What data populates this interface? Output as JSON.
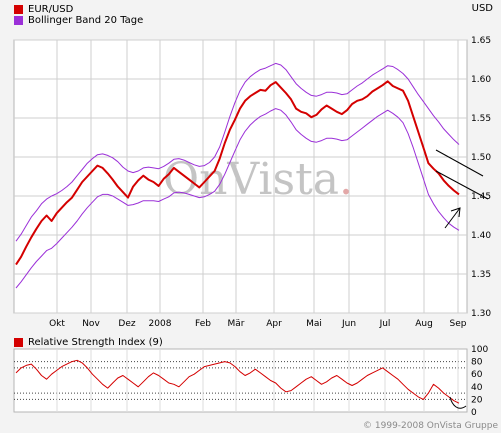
{
  "header": {
    "legend": [
      {
        "label": "EUR/USD",
        "color": "#d40000"
      },
      {
        "label": "Bollinger Band 20 Tage",
        "color": "#9b30d8"
      }
    ],
    "currency": "USD"
  },
  "rsi_header": {
    "label": "Relative Strength Index (9)",
    "color": "#d40000"
  },
  "watermark": {
    "main": "OnVista",
    "dot": "."
  },
  "footer": "© 1999-2008 OnVista Gruppe",
  "chart_data": [
    {
      "type": "line",
      "title": "EUR/USD",
      "x_labels": [
        "Okt",
        "Nov",
        "Dez",
        "2008",
        "Feb",
        "Mär",
        "Apr",
        "Mai",
        "Jun",
        "Jul",
        "Aug",
        "Sep"
      ],
      "ylim": [
        1.3,
        1.65
      ],
      "yticks": [
        1.3,
        1.35,
        1.4,
        1.45,
        1.5,
        1.55,
        1.6,
        1.65
      ],
      "grid": true,
      "series": [
        {
          "name": "EUR/USD",
          "color": "#d40000",
          "values": [
            1.362,
            1.372,
            1.385,
            1.397,
            1.408,
            1.418,
            1.425,
            1.418,
            1.428,
            1.435,
            1.442,
            1.448,
            1.458,
            1.468,
            1.475,
            1.482,
            1.489,
            1.486,
            1.479,
            1.471,
            1.462,
            1.455,
            1.448,
            1.462,
            1.47,
            1.476,
            1.471,
            1.468,
            1.463,
            1.472,
            1.478,
            1.486,
            1.481,
            1.476,
            1.471,
            1.466,
            1.461,
            1.468,
            1.475,
            1.482,
            1.498,
            1.518,
            1.535,
            1.548,
            1.562,
            1.572,
            1.578,
            1.582,
            1.586,
            1.585,
            1.592,
            1.596,
            1.589,
            1.582,
            1.574,
            1.562,
            1.558,
            1.556,
            1.551,
            1.554,
            1.561,
            1.566,
            1.562,
            1.558,
            1.555,
            1.56,
            1.568,
            1.572,
            1.574,
            1.578,
            1.584,
            1.588,
            1.592,
            1.597,
            1.591,
            1.588,
            1.585,
            1.572,
            1.552,
            1.532,
            1.512,
            1.492,
            1.485,
            1.479,
            1.47,
            1.463,
            1.457,
            1.452
          ]
        },
        {
          "name": "Bollinger upper",
          "color": "#9b30d8",
          "values": [
            1.392,
            1.401,
            1.412,
            1.423,
            1.431,
            1.44,
            1.446,
            1.45,
            1.453,
            1.457,
            1.462,
            1.468,
            1.476,
            1.484,
            1.492,
            1.498,
            1.503,
            1.504,
            1.502,
            1.499,
            1.494,
            1.487,
            1.482,
            1.48,
            1.482,
            1.486,
            1.487,
            1.486,
            1.485,
            1.488,
            1.492,
            1.497,
            1.498,
            1.496,
            1.493,
            1.49,
            1.488,
            1.489,
            1.493,
            1.5,
            1.513,
            1.532,
            1.552,
            1.57,
            1.585,
            1.596,
            1.603,
            1.608,
            1.612,
            1.614,
            1.617,
            1.62,
            1.618,
            1.612,
            1.603,
            1.594,
            1.588,
            1.583,
            1.579,
            1.578,
            1.58,
            1.583,
            1.583,
            1.582,
            1.58,
            1.581,
            1.586,
            1.591,
            1.595,
            1.6,
            1.605,
            1.609,
            1.613,
            1.617,
            1.616,
            1.612,
            1.607,
            1.6,
            1.59,
            1.58,
            1.571,
            1.562,
            1.553,
            1.545,
            1.536,
            1.529,
            1.522,
            1.516
          ]
        },
        {
          "name": "Bollinger lower",
          "color": "#9b30d8",
          "values": [
            1.332,
            1.34,
            1.349,
            1.358,
            1.366,
            1.373,
            1.38,
            1.383,
            1.389,
            1.396,
            1.403,
            1.41,
            1.418,
            1.427,
            1.435,
            1.442,
            1.449,
            1.452,
            1.452,
            1.45,
            1.446,
            1.442,
            1.438,
            1.439,
            1.441,
            1.444,
            1.444,
            1.444,
            1.443,
            1.446,
            1.449,
            1.454,
            1.455,
            1.454,
            1.452,
            1.45,
            1.448,
            1.449,
            1.452,
            1.456,
            1.465,
            1.478,
            1.493,
            1.508,
            1.522,
            1.533,
            1.541,
            1.547,
            1.552,
            1.555,
            1.559,
            1.562,
            1.56,
            1.554,
            1.545,
            1.535,
            1.529,
            1.524,
            1.52,
            1.519,
            1.521,
            1.524,
            1.524,
            1.523,
            1.521,
            1.522,
            1.527,
            1.532,
            1.537,
            1.542,
            1.547,
            1.552,
            1.556,
            1.56,
            1.556,
            1.551,
            1.544,
            1.53,
            1.512,
            1.492,
            1.472,
            1.452,
            1.44,
            1.43,
            1.422,
            1.415,
            1.41,
            1.406
          ]
        }
      ]
    },
    {
      "type": "line",
      "title": "Relative Strength Index (9)",
      "ylim": [
        0,
        100
      ],
      "yticks": [
        0,
        20,
        40,
        60,
        80,
        100
      ],
      "reference_lines": [
        20,
        30,
        70,
        80
      ],
      "series": [
        {
          "name": "Relative Strength Index (9)",
          "color": "#d40000",
          "values": [
            62,
            70,
            74,
            76,
            68,
            58,
            52,
            60,
            66,
            72,
            76,
            80,
            82,
            78,
            70,
            60,
            52,
            44,
            38,
            46,
            54,
            58,
            52,
            46,
            40,
            48,
            56,
            62,
            58,
            52,
            46,
            44,
            40,
            48,
            56,
            60,
            66,
            72,
            74,
            76,
            78,
            80,
            78,
            72,
            64,
            58,
            62,
            68,
            62,
            56,
            50,
            46,
            38,
            32,
            34,
            40,
            46,
            52,
            56,
            50,
            44,
            48,
            54,
            58,
            52,
            46,
            42,
            46,
            52,
            58,
            62,
            66,
            70,
            64,
            58,
            52,
            44,
            36,
            30,
            24,
            20,
            30,
            44,
            38,
            30,
            24,
            18,
            14
          ]
        }
      ]
    }
  ]
}
